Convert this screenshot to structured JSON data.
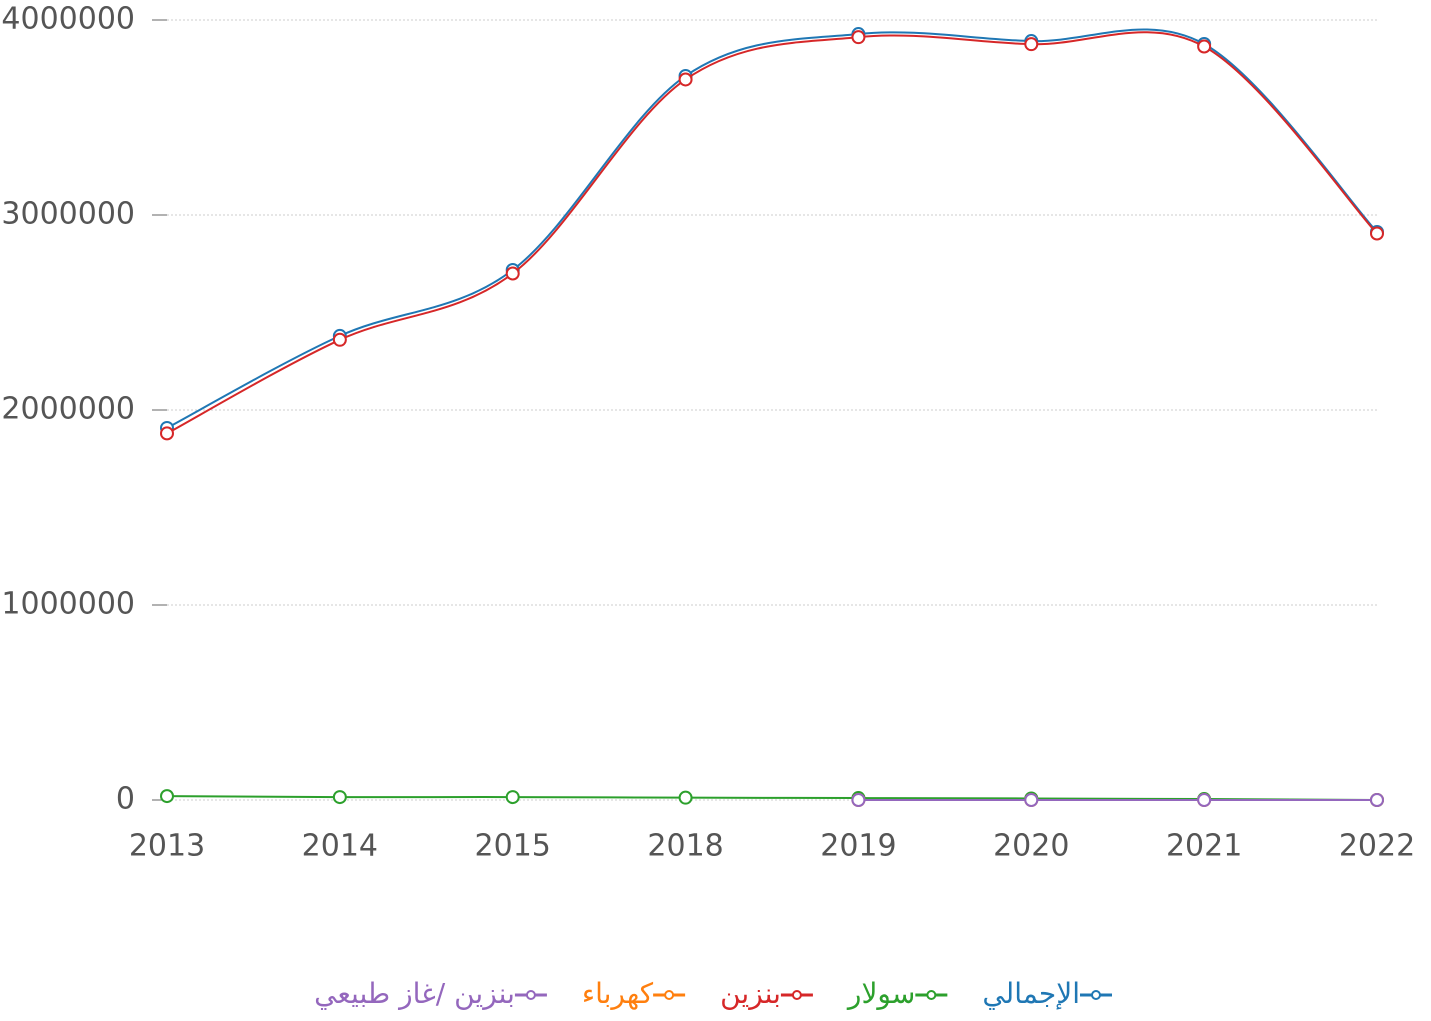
{
  "chart_data": {
    "type": "line",
    "categories": [
      "2013",
      "2014",
      "2015",
      "2018",
      "2019",
      "2020",
      "2021",
      "2022"
    ],
    "series": [
      {
        "name": "الإجمالي",
        "color": "#1f77b4",
        "values": [
          1908000,
          2380000,
          2718000,
          3713000,
          3928000,
          3892000,
          3877000,
          2913000
        ]
      },
      {
        "name": "سولار",
        "color": "#2ca02c",
        "values": [
          20000,
          15000,
          15000,
          12000,
          10000,
          8000,
          5000,
          0
        ]
      },
      {
        "name": "بنزين",
        "color": "#d62728",
        "values": [
          1880000,
          2360000,
          2700000,
          3695000,
          3912000,
          3876000,
          3864000,
          2905000
        ]
      },
      {
        "name": "كهرباء",
        "color": "#ff7f0e",
        "values": [
          null,
          null,
          null,
          null,
          0,
          0,
          0,
          0
        ]
      },
      {
        "name": "بنزين /غاز طبيعي",
        "color": "#9467bd",
        "values": [
          null,
          null,
          null,
          null,
          0,
          0,
          0,
          0
        ]
      }
    ],
    "ylim": [
      0,
      4000000
    ],
    "yticks": [
      0,
      1000000,
      2000000,
      3000000,
      4000000
    ],
    "grid": true
  }
}
